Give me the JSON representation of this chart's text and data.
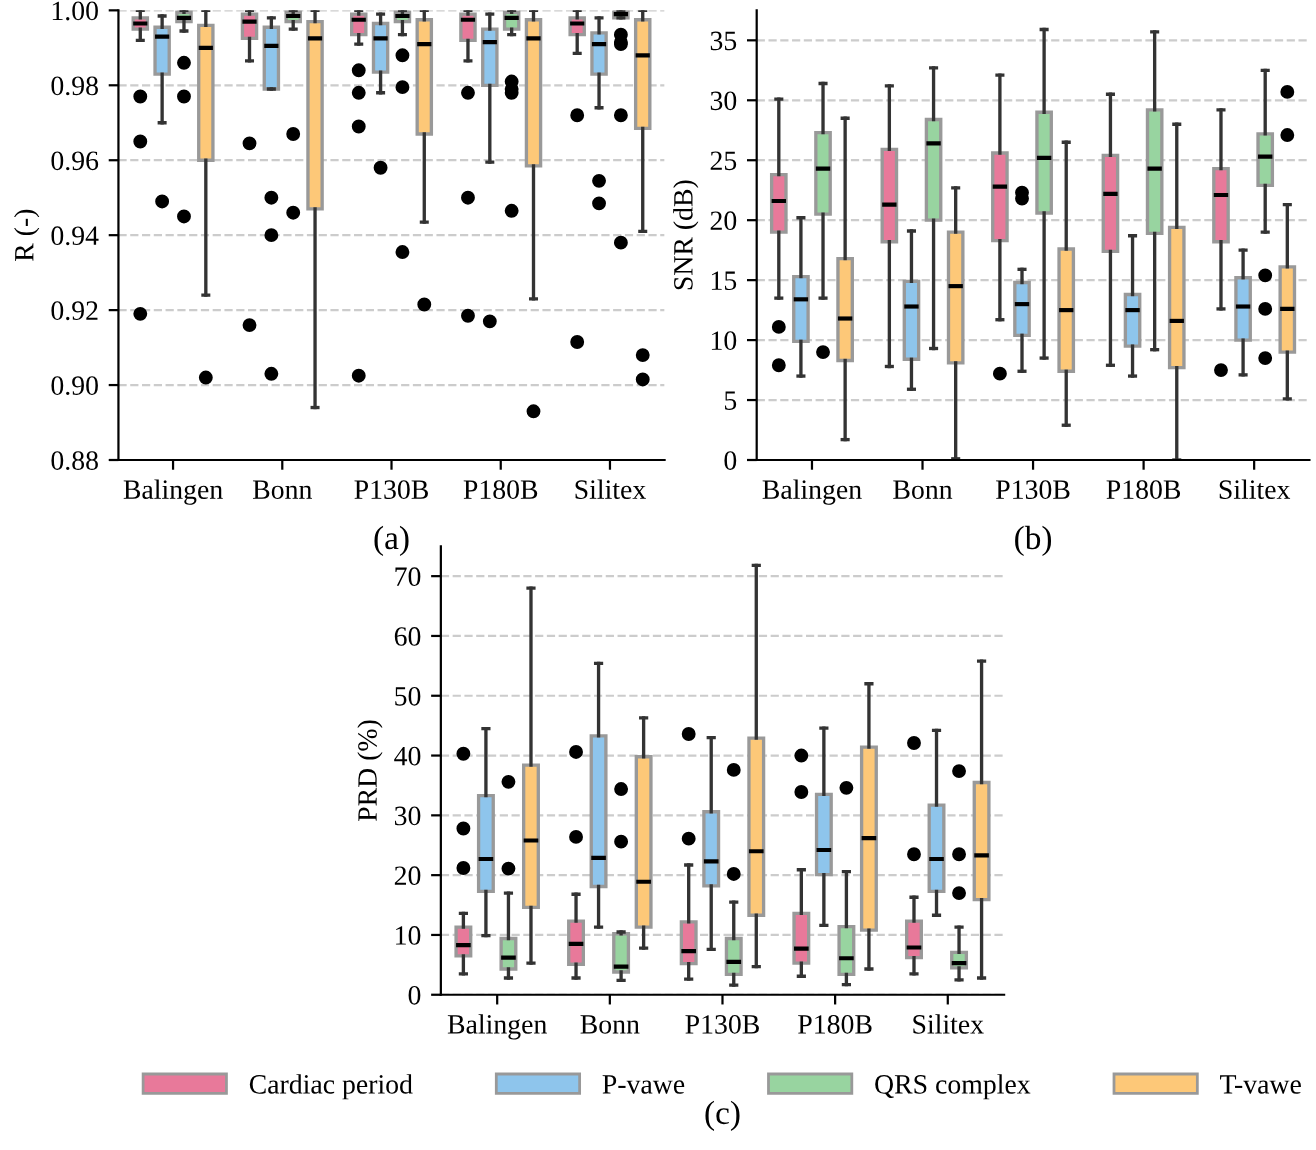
{
  "chart_data": [
    {
      "type": "box",
      "ylabel": "R (-)",
      "categories": [
        "Balingen",
        "Bonn",
        "P130B",
        "P180B",
        "Silitex"
      ],
      "ylim": [
        0.88,
        1.0
      ],
      "yticks": [
        {
          "value": 0.88,
          "label": "0.88"
        },
        {
          "value": 0.9,
          "label": "0.90"
        },
        {
          "value": 0.92,
          "label": "0.92"
        },
        {
          "value": 0.94,
          "label": "0.94"
        },
        {
          "value": 0.96,
          "label": "0.96"
        },
        {
          "value": 0.98,
          "label": "0.98"
        },
        {
          "value": 1.0,
          "label": "1.00"
        }
      ],
      "grid": "y",
      "annotations": [
        "(a)"
      ],
      "series": [
        {
          "color": "#e8799a",
          "boxes": [
            {
              "low": 0.992,
              "q1": 0.995,
              "median": 0.9965,
              "q3": 0.998,
              "high": 1.0,
              "outliers": [
                0.977,
                0.965,
                0.919
              ]
            },
            {
              "low": 0.9865,
              "q1": 0.9925,
              "median": 0.997,
              "q3": 0.999,
              "high": 1.0,
              "outliers": [
                0.9645,
                0.916
              ]
            },
            {
              "low": 0.991,
              "q1": 0.9935,
              "median": 0.9975,
              "q3": 0.999,
              "high": 1.0,
              "outliers": [
                0.984,
                0.978,
                0.969,
                0.9025
              ]
            },
            {
              "low": 0.9865,
              "q1": 0.992,
              "median": 0.9975,
              "q3": 0.999,
              "high": 1.0,
              "outliers": [
                0.978,
                0.95,
                0.9185
              ]
            },
            {
              "low": 0.9885,
              "q1": 0.9935,
              "median": 0.9965,
              "q3": 0.998,
              "high": 1.0,
              "outliers": [
                0.972,
                0.9115
              ]
            }
          ]
        },
        {
          "color": "#8ec5ec",
          "boxes": [
            {
              "low": 0.97,
              "q1": 0.983,
              "median": 0.993,
              "q3": 0.9955,
              "high": 0.9985,
              "outliers": [
                0.949
              ]
            },
            {
              "low": 0.979,
              "q1": 0.979,
              "median": 0.9905,
              "q3": 0.9955,
              "high": 0.998,
              "outliers": [
                0.95,
                0.94,
                0.903
              ]
            },
            {
              "low": 0.978,
              "q1": 0.9835,
              "median": 0.9925,
              "q3": 0.9965,
              "high": 0.999,
              "outliers": [
                0.958
              ]
            },
            {
              "low": 0.9595,
              "q1": 0.98,
              "median": 0.9915,
              "q3": 0.995,
              "high": 0.999,
              "outliers": [
                0.917
              ]
            },
            {
              "low": 0.974,
              "q1": 0.983,
              "median": 0.991,
              "q3": 0.994,
              "high": 0.998,
              "outliers": [
                0.9545,
                0.9485
              ]
            }
          ]
        },
        {
          "color": "#98d4a0",
          "boxes": [
            {
              "low": 0.9945,
              "q1": 0.997,
              "median": 0.998,
              "q3": 0.9995,
              "high": 1.0,
              "outliers": [
                0.986,
                0.977,
                0.945
              ]
            },
            {
              "low": 0.995,
              "q1": 0.997,
              "median": 0.9985,
              "q3": 0.9995,
              "high": 1.0,
              "outliers": [
                0.967,
                0.946
              ]
            },
            {
              "low": 0.9935,
              "q1": 0.997,
              "median": 0.9985,
              "q3": 0.9995,
              "high": 1.0,
              "outliers": [
                0.988,
                0.9795,
                0.9355
              ]
            },
            {
              "low": 0.9935,
              "q1": 0.995,
              "median": 0.998,
              "q3": 0.9995,
              "high": 1.0,
              "outliers": [
                0.981,
                0.979,
                0.978,
                0.9465
              ]
            },
            {
              "low": 0.998,
              "q1": 0.998,
              "median": 0.999,
              "q3": 0.9995,
              "high": 1.0,
              "outliers": [
                0.9935,
                0.9915,
                0.991,
                0.972,
                0.938
              ]
            }
          ]
        },
        {
          "color": "#fdc878",
          "boxes": [
            {
              "low": 0.924,
              "q1": 0.96,
              "median": 0.99,
              "q3": 0.996,
              "high": 1.0,
              "outliers": [
                0.902
              ]
            },
            {
              "low": 0.894,
              "q1": 0.947,
              "median": 0.9925,
              "q3": 0.997,
              "high": 1.0
            },
            {
              "low": 0.9435,
              "q1": 0.967,
              "median": 0.991,
              "q3": 0.9975,
              "high": 1.0,
              "outliers": [
                0.9215
              ]
            },
            {
              "low": 0.923,
              "q1": 0.9585,
              "median": 0.9925,
              "q3": 0.9975,
              "high": 1.0,
              "outliers": [
                0.893
              ]
            },
            {
              "low": 0.941,
              "q1": 0.9685,
              "median": 0.988,
              "q3": 0.9975,
              "high": 1.0,
              "outliers": [
                0.908,
                0.9015
              ]
            }
          ]
        }
      ]
    },
    {
      "type": "box",
      "ylabel": "SNR (dB)",
      "categories": [
        "Balingen",
        "Bonn",
        "P130B",
        "P180B",
        "Silitex"
      ],
      "ylim": [
        0,
        37.5
      ],
      "yticks": [
        0,
        5,
        10,
        15,
        20,
        25,
        30,
        35
      ],
      "grid": "y",
      "annotations": [
        "(b)"
      ],
      "series": [
        {
          "color": "#e8799a",
          "boxes": [
            {
              "low": 13.5,
              "q1": 19,
              "median": 21.6,
              "q3": 23.8,
              "high": 30.1,
              "outliers": [
                11.1,
                7.9
              ]
            },
            {
              "low": 7.8,
              "q1": 18.2,
              "median": 21.3,
              "q3": 25.9,
              "high": 31.2
            },
            {
              "low": 11.7,
              "q1": 18.3,
              "median": 22.8,
              "q3": 25.6,
              "high": 32.1,
              "outliers": [
                7.2
              ]
            },
            {
              "low": 7.9,
              "q1": 17.4,
              "median": 22.2,
              "q3": 25.4,
              "high": 30.5
            },
            {
              "low": 12.6,
              "q1": 18.2,
              "median": 22.1,
              "q3": 24.3,
              "high": 29.2,
              "outliers": [
                7.5
              ]
            }
          ]
        },
        {
          "color": "#8ec5ec",
          "boxes": [
            {
              "low": 7,
              "q1": 9.9,
              "median": 13.4,
              "q3": 15.3,
              "high": 20.2
            },
            {
              "low": 5.9,
              "q1": 8.4,
              "median": 12.8,
              "q3": 14.9,
              "high": 19.1
            },
            {
              "low": 7.4,
              "q1": 10.4,
              "median": 13,
              "q3": 14.8,
              "high": 15.9,
              "outliers": [
                22.3,
                21.8
              ]
            },
            {
              "low": 7,
              "q1": 9.5,
              "median": 12.5,
              "q3": 13.8,
              "high": 18.7
            },
            {
              "low": 7.1,
              "q1": 10,
              "median": 12.8,
              "q3": 15.2,
              "high": 17.5
            }
          ]
        },
        {
          "color": "#98d4a0",
          "boxes": [
            {
              "low": 13.5,
              "q1": 20.5,
              "median": 24.3,
              "q3": 27.3,
              "high": 31.4,
              "outliers": [
                9
              ]
            },
            {
              "low": 9.3,
              "q1": 20,
              "median": 26.4,
              "q3": 28.4,
              "high": 32.7
            },
            {
              "low": 8.5,
              "q1": 20.6,
              "median": 25.2,
              "q3": 29,
              "high": 35.9
            },
            {
              "low": 9.2,
              "q1": 18.9,
              "median": 24.3,
              "q3": 29.2,
              "high": 35.7
            },
            {
              "low": 19,
              "q1": 22.9,
              "median": 25.3,
              "q3": 27.2,
              "high": 32.5,
              "outliers": [
                15.4,
                12.6,
                8.5
              ]
            }
          ]
        },
        {
          "color": "#fdc878",
          "boxes": [
            {
              "low": 1.7,
              "q1": 8.3,
              "median": 11.8,
              "q3": 16.8,
              "high": 28.5
            },
            {
              "low": 0.1,
              "q1": 8.1,
              "median": 14.5,
              "q3": 19,
              "high": 22.7
            },
            {
              "low": 2.9,
              "q1": 7.4,
              "median": 12.5,
              "q3": 17.6,
              "high": 26.5
            },
            {
              "low": 0,
              "q1": 7.7,
              "median": 11.6,
              "q3": 19.4,
              "high": 28
            },
            {
              "low": 5.1,
              "q1": 9,
              "median": 12.6,
              "q3": 16.1,
              "high": 21.3,
              "outliers": [
                30.7,
                27.1
              ]
            }
          ]
        }
      ]
    },
    {
      "type": "box",
      "ylabel": "PRD (%)",
      "categories": [
        "Balingen",
        "Bonn",
        "P130B",
        "P180B",
        "Silitex"
      ],
      "ylim": [
        0,
        75
      ],
      "yticks": [
        0,
        10,
        20,
        30,
        40,
        50,
        60,
        70
      ],
      "grid": "y",
      "legend": "bottom",
      "annotations": [
        "(c)"
      ],
      "series": [
        {
          "name": "Cardiac period",
          "color": "#e8799a",
          "boxes": [
            {
              "low": 3.5,
              "q1": 6.5,
              "median": 8.3,
              "q3": 11.3,
              "high": 13.6,
              "outliers": [
                40.3,
                27.8,
                21.2
              ]
            },
            {
              "low": 2.8,
              "q1": 5.1,
              "median": 8.5,
              "q3": 12.3,
              "high": 16.8,
              "outliers": [
                40.6,
                26.4
              ]
            },
            {
              "low": 2.6,
              "q1": 5.2,
              "median": 7.3,
              "q3": 12.2,
              "high": 21.7,
              "outliers": [
                43.6,
                26.1
              ]
            },
            {
              "low": 3.1,
              "q1": 5.3,
              "median": 7.7,
              "q3": 13.6,
              "high": 20.9,
              "outliers": [
                40,
                33.9
              ]
            },
            {
              "low": 3.5,
              "q1": 6.2,
              "median": 7.9,
              "q3": 12.3,
              "high": 16.3,
              "outliers": [
                42.1,
                23.5
              ]
            }
          ]
        },
        {
          "name": "P-vawe",
          "color": "#8ec5ec",
          "boxes": [
            {
              "low": 9.9,
              "q1": 17.3,
              "median": 22.7,
              "q3": 33.3,
              "high": 44.5
            },
            {
              "low": 11.3,
              "q1": 18.1,
              "median": 22.9,
              "q3": 43.3,
              "high": 55.4
            },
            {
              "low": 7.6,
              "q1": 18.2,
              "median": 22.3,
              "q3": 30.6,
              "high": 43
            },
            {
              "low": 11.6,
              "q1": 20.1,
              "median": 24.2,
              "q3": 33.5,
              "high": 44.6
            },
            {
              "low": 13.3,
              "q1": 17.3,
              "median": 22.7,
              "q3": 31.7,
              "high": 44.2
            }
          ]
        },
        {
          "name": "QRS complex",
          "color": "#98d4a0",
          "boxes": [
            {
              "low": 2.8,
              "q1": 4.3,
              "median": 6.2,
              "q3": 9.4,
              "high": 17,
              "outliers": [
                35.6,
                21.1
              ]
            },
            {
              "low": 2.4,
              "q1": 3.8,
              "median": 4.7,
              "q3": 10.2,
              "high": 10.5,
              "outliers": [
                34.4,
                25.6
              ]
            },
            {
              "low": 1.6,
              "q1": 3.4,
              "median": 5.5,
              "q3": 9.4,
              "high": 15.5,
              "outliers": [
                37.6,
                20.2
              ]
            },
            {
              "low": 1.7,
              "q1": 3.4,
              "median": 6.1,
              "q3": 11.4,
              "high": 20.6,
              "outliers": [
                34.6
              ]
            },
            {
              "low": 2.5,
              "q1": 4.5,
              "median": 5.3,
              "q3": 7.1,
              "high": 11.3,
              "outliers": [
                37.4,
                23.5,
                17
              ]
            }
          ]
        },
        {
          "name": "T-vawe",
          "color": "#fdc878",
          "boxes": [
            {
              "low": 5.3,
              "q1": 14.6,
              "median": 25.8,
              "q3": 38.4,
              "high": 68
            },
            {
              "low": 7.8,
              "q1": 11.3,
              "median": 18.9,
              "q3": 39.8,
              "high": 46.3
            },
            {
              "low": 4.7,
              "q1": 13.3,
              "median": 24,
              "q3": 42.9,
              "high": 71.8
            },
            {
              "low": 4.3,
              "q1": 10.8,
              "median": 26.2,
              "q3": 41.4,
              "high": 52
            },
            {
              "low": 2.8,
              "q1": 15.9,
              "median": 23.3,
              "q3": 35.5,
              "high": 55.8
            }
          ]
        }
      ]
    }
  ]
}
